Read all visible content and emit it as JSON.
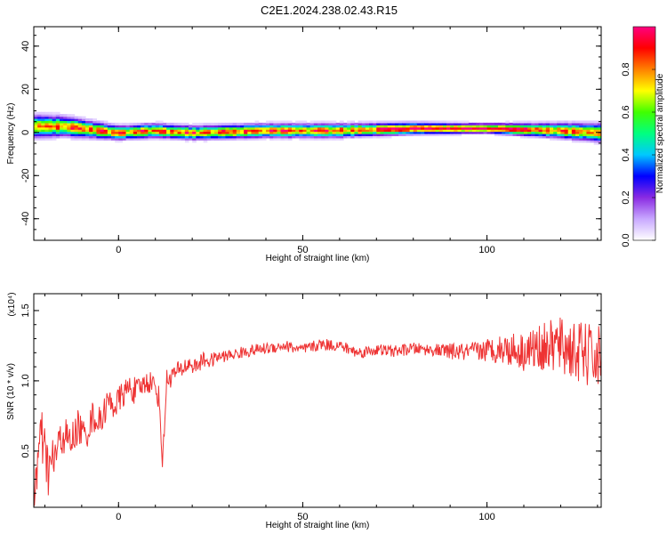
{
  "figure": {
    "title": "C2E1.2024.238.02.43.R15"
  },
  "chart_data": [
    {
      "type": "heatmap",
      "xlabel": "Height of straight line (km)",
      "ylabel": "Frequency (Hz)",
      "xlim": [
        -23,
        131
      ],
      "ylim": [
        -50,
        49
      ],
      "x_ticks": [
        0,
        50,
        100
      ],
      "y_ticks": [
        40,
        20,
        0,
        -20,
        -40
      ],
      "grid": false,
      "band": {
        "description_values": "Spectral energy concentrated near 0 Hz across all heights",
        "center_hz": [
          [
            -23,
            3
          ],
          [
            -15,
            3
          ],
          [
            -10,
            2
          ],
          [
            -5,
            1
          ],
          [
            0,
            0
          ],
          [
            10,
            1
          ],
          [
            20,
            0
          ],
          [
            40,
            1
          ],
          [
            60,
            1
          ],
          [
            80,
            2
          ],
          [
            100,
            2
          ],
          [
            120,
            1
          ],
          [
            131,
            0
          ]
        ],
        "half_width_hz": [
          [
            -23,
            5
          ],
          [
            0,
            3
          ],
          [
            20,
            3
          ],
          [
            60,
            3
          ],
          [
            100,
            2
          ],
          [
            131,
            4
          ]
        ]
      },
      "colorbar": {
        "label": "Normalized spectral amplitude",
        "range": [
          0,
          1
        ],
        "ticks": [
          "0.0",
          "0.2",
          "0.4",
          "0.6",
          "0.8"
        ],
        "tick_values": [
          0,
          0.2,
          0.4,
          0.6,
          0.8
        ],
        "colors": [
          "#ffffff",
          "#c8a8ff",
          "#8a2be2",
          "#0000ff",
          "#00c8ff",
          "#00ff80",
          "#40ff00",
          "#ffff00",
          "#ff8000",
          "#ff0000",
          "#ff0080"
        ]
      }
    },
    {
      "type": "line",
      "xlabel": "Height of straight line (km)",
      "ylabel": "SNR (10 * v/v)",
      "y_scale_label": "(x10⁴)",
      "xlim": [
        -23,
        131
      ],
      "ylim": [
        0.1,
        1.62
      ],
      "x_ticks": [
        0,
        50,
        100
      ],
      "y_ticks": [
        "0.5",
        "1.0",
        "1.5"
      ],
      "y_tick_values": [
        0.5,
        1.0,
        1.5
      ],
      "grid": false,
      "series": [
        {
          "color": "#ee3333",
          "x": [
            -23,
            -21,
            -19,
            -17,
            -15,
            -13,
            -11,
            -9,
            -7,
            -5,
            -3,
            -1,
            1,
            3,
            5,
            7,
            9,
            11,
            12,
            13,
            15,
            17,
            19,
            21,
            23,
            25,
            27,
            30,
            35,
            40,
            45,
            50,
            55,
            60,
            65,
            70,
            75,
            80,
            85,
            90,
            95,
            100,
            105,
            110,
            115,
            120,
            125,
            131
          ],
          "y": [
            0.22,
            0.6,
            0.35,
            0.48,
            0.62,
            0.55,
            0.68,
            0.6,
            0.75,
            0.7,
            0.85,
            0.82,
            0.9,
            0.95,
            0.92,
            0.98,
            1.0,
            0.88,
            0.4,
            1.0,
            1.05,
            1.08,
            1.12,
            1.1,
            1.15,
            1.14,
            1.17,
            1.18,
            1.21,
            1.23,
            1.25,
            1.22,
            1.26,
            1.25,
            1.2,
            1.22,
            1.21,
            1.23,
            1.22,
            1.21,
            1.2,
            1.22,
            1.23,
            1.21,
            1.24,
            1.25,
            1.2,
            1.15
          ],
          "noise_amplitude": [
            0.12,
            0.15,
            0.14,
            0.12,
            0.1,
            0.1,
            0.09,
            0.08,
            0.08,
            0.08,
            0.07,
            0.07,
            0.07,
            0.07,
            0.07,
            0.06,
            0.06,
            0.06,
            0.06,
            0.06,
            0.05,
            0.05,
            0.05,
            0.04,
            0.04,
            0.04,
            0.03,
            0.03,
            0.03,
            0.03,
            0.03,
            0.03,
            0.03,
            0.03,
            0.03,
            0.03,
            0.03,
            0.03,
            0.03,
            0.04,
            0.05,
            0.06,
            0.08,
            0.1,
            0.12,
            0.15,
            0.16,
            0.18
          ]
        }
      ]
    }
  ]
}
